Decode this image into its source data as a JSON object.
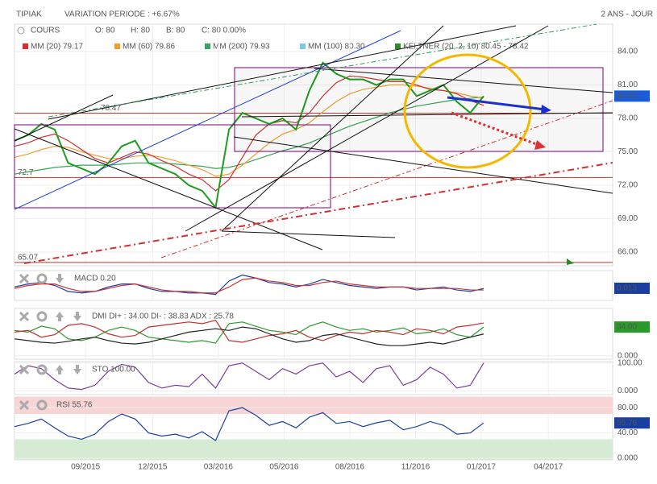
{
  "header": {
    "title": "TIPIAK",
    "variation": "VARIATION PERIODE : +6.67%",
    "period": "2 ANS - JOUR",
    "quote": [
      "COURS",
      "O: 80",
      "H: 80",
      "B: 80",
      "C: 80 0.00%"
    ],
    "extra_legend": [
      {
        "text": "MM (100) 80.30",
        "color": "#7ec8e3"
      },
      {
        "text": "KELTNER (20, 2, 10) 80.45 - 78.42",
        "color": "#2e8b2e"
      }
    ]
  },
  "chart_data": [
    {
      "type": "line",
      "ylim": [
        64.77,
        86.46
      ],
      "xlim": [
        0,
        44.6
      ],
      "yticks": [
        {
          "value": 84,
          "label": "84.00"
        },
        {
          "value": 81,
          "label": "81.00"
        },
        {
          "value": 78,
          "label": "78.00"
        },
        {
          "value": 75,
          "label": "75.00"
        },
        {
          "value": 72,
          "label": "72.00"
        },
        {
          "value": 69,
          "label": "69.00"
        },
        {
          "value": 66,
          "label": "66.00"
        }
      ],
      "xticks": [
        {
          "value": 5.3,
          "label": "09/2015"
        },
        {
          "value": 10.3,
          "label": "12/2015"
        },
        {
          "value": 15.2,
          "label": "03/2016"
        },
        {
          "value": 20.1,
          "label": "05/2016"
        },
        {
          "value": 25.0,
          "label": "08/2016"
        },
        {
          "value": 29.9,
          "label": "11/2016"
        },
        {
          "value": 34.8,
          "label": "01/2017"
        },
        {
          "value": 39.8,
          "label": "04/2017"
        }
      ],
      "last_label": {
        "value": 80,
        "label": "80.00",
        "color": "#1a5bd6"
      },
      "levels": [
        {
          "value": 78.47,
          "label": "78.47"
        },
        {
          "value": 72.7,
          "label": "72.7"
        },
        {
          "value": 65.07,
          "label": "65.07"
        }
      ],
      "level_color": "#c0392b",
      "series": [
        {
          "name": "MM (200) 79.93",
          "color": "#3aa35a",
          "values": [
            73.0,
            73.2,
            73.4,
            73.6,
            73.7,
            73.8,
            73.8,
            73.8,
            73.9,
            74.0,
            74.0,
            74.0,
            73.9,
            73.8,
            73.7,
            73.5,
            73.6,
            73.9,
            74.3,
            74.7,
            75.1,
            75.4,
            75.8,
            76.3,
            76.8,
            77.3,
            77.7,
            78.1,
            78.5,
            78.8,
            79.1,
            79.3,
            79.5,
            79.7,
            79.8,
            79.93
          ]
        },
        {
          "name": "MM (60) 79.86",
          "color": "#f0a030",
          "values": [
            74.5,
            74.8,
            75.2,
            75.5,
            75.4,
            75.0,
            74.7,
            74.4,
            74.4,
            74.6,
            74.7,
            74.5,
            74.2,
            73.8,
            73.4,
            72.8,
            73.0,
            73.8,
            74.8,
            75.8,
            76.6,
            77.0,
            77.6,
            78.6,
            79.5,
            80.2,
            80.6,
            80.8,
            81.0,
            81.0,
            80.9,
            80.7,
            80.5,
            80.3,
            80.0,
            79.86
          ]
        },
        {
          "name": "MM (20) 79.17",
          "color": "#d03030",
          "values": [
            75.5,
            75.8,
            76.3,
            76.6,
            76.0,
            75.2,
            74.4,
            74.0,
            74.5,
            75.0,
            74.8,
            74.2,
            73.7,
            73.0,
            72.5,
            71.5,
            72.5,
            74.5,
            76.5,
            77.5,
            77.8,
            77.6,
            78.5,
            80.0,
            81.2,
            81.8,
            81.7,
            81.5,
            81.3,
            81.3,
            81.0,
            80.6,
            80.5,
            80.2,
            79.6,
            79.17
          ]
        },
        {
          "name": "COURS",
          "color": "#1e9e1e",
          "values": [
            76.0,
            76.5,
            77.5,
            77.0,
            74.0,
            73.5,
            73.0,
            74.0,
            75.5,
            76.0,
            74.0,
            73.5,
            73.0,
            72.0,
            71.5,
            70.0,
            77.0,
            78.5,
            78.0,
            77.5,
            78.0,
            77.0,
            80.5,
            83.0,
            82.0,
            81.5,
            81.5,
            81.0,
            81.5,
            81.5,
            80.0,
            80.5,
            81.0,
            79.5,
            78.5,
            80.0
          ]
        }
      ]
    },
    {
      "type": "line",
      "title": "MACD 0.20",
      "ylim": [
        -0.8,
        1.2
      ],
      "xlim": [
        0,
        44.6
      ],
      "yticks": [],
      "last_label": {
        "value": 0.013,
        "label": "0.013",
        "color": "#1a3fa0"
      },
      "series": [
        {
          "color": "#1a3fa0",
          "values": [
            0.1,
            0.3,
            0.4,
            0.2,
            -0.2,
            -0.3,
            -0.2,
            0.1,
            0.3,
            0.3,
            0.0,
            -0.2,
            -0.2,
            -0.3,
            -0.3,
            -0.4,
            0.5,
            0.9,
            0.7,
            0.4,
            0.3,
            0.1,
            0.3,
            0.6,
            0.4,
            0.2,
            0.1,
            0.0,
            0.1,
            0.1,
            -0.1,
            0.0,
            0.1,
            -0.1,
            -0.2,
            0.0
          ]
        },
        {
          "color": "#d03030",
          "values": [
            0.0,
            0.2,
            0.3,
            0.3,
            0.0,
            -0.2,
            -0.2,
            0.0,
            0.2,
            0.3,
            0.1,
            -0.1,
            -0.2,
            -0.2,
            -0.3,
            -0.3,
            0.1,
            0.6,
            0.7,
            0.5,
            0.4,
            0.2,
            0.2,
            0.4,
            0.5,
            0.3,
            0.2,
            0.1,
            0.1,
            0.1,
            0.0,
            0.0,
            0.0,
            0.0,
            -0.1,
            -0.1
          ]
        }
      ]
    },
    {
      "type": "line",
      "title": "DMI DI+ : 34.00 DI- : 38.83 ADX : 25.78",
      "ylim": [
        -4,
        56
      ],
      "xlim": [
        0,
        44.6
      ],
      "yticks": [
        {
          "value": 0,
          "label": "0.000"
        }
      ],
      "last_label": {
        "value": 34,
        "label": "34.00",
        "color": "#2a9a2a"
      },
      "series": [
        {
          "color": "#2a9a2a",
          "values": [
            30,
            28,
            35,
            32,
            20,
            18,
            22,
            30,
            34,
            30,
            22,
            20,
            18,
            16,
            18,
            15,
            38,
            40,
            35,
            30,
            28,
            25,
            35,
            40,
            34,
            30,
            32,
            28,
            30,
            33,
            26,
            28,
            32,
            25,
            22,
            34
          ]
        },
        {
          "color": "#c03030",
          "values": [
            28,
            30,
            22,
            25,
            36,
            38,
            34,
            26,
            22,
            24,
            34,
            36,
            38,
            40,
            38,
            42,
            18,
            16,
            20,
            24,
            26,
            30,
            22,
            18,
            24,
            28,
            26,
            30,
            28,
            25,
            32,
            30,
            26,
            34,
            36,
            38.83
          ]
        },
        {
          "color": "#222222",
          "values": [
            20,
            18,
            16,
            15,
            17,
            20,
            22,
            18,
            15,
            14,
            16,
            20,
            24,
            28,
            30,
            32,
            30,
            34,
            32,
            26,
            20,
            16,
            18,
            24,
            26,
            22,
            18,
            14,
            12,
            12,
            14,
            16,
            14,
            18,
            22,
            25.78
          ]
        }
      ]
    },
    {
      "type": "line",
      "title": "STO 100.00",
      "ylim": [
        -13.5,
        105
      ],
      "xlim": [
        0,
        44.6
      ],
      "yticks": [
        {
          "value": 100,
          "label": "100.00"
        },
        {
          "value": 0,
          "label": "0.000"
        }
      ],
      "series": [
        {
          "color": "#7a3fa0",
          "values": [
            60,
            90,
            80,
            40,
            10,
            5,
            20,
            70,
            95,
            85,
            30,
            10,
            20,
            15,
            60,
            10,
            90,
            100,
            70,
            40,
            80,
            60,
            90,
            100,
            50,
            70,
            30,
            80,
            90,
            20,
            40,
            85,
            60,
            10,
            20,
            100
          ]
        }
      ]
    },
    {
      "type": "line",
      "title": "RSI 55.76",
      "ylim": [
        -2.6,
        96.8
      ],
      "xlim": [
        0,
        44.6
      ],
      "yticks": [
        {
          "value": 80,
          "label": "80.00"
        },
        {
          "value": 40,
          "label": "40.00"
        },
        {
          "value": 0,
          "label": "0.000"
        }
      ],
      "last_label": {
        "value": 55.76,
        "label": "55.76",
        "color": "#1a3fa0"
      },
      "overbought": 70,
      "overbought_color": "#f8d4d4",
      "oversold": 30,
      "oversold_color": "#d6ebd3",
      "series": [
        {
          "color": "#1a3fa0",
          "values": [
            50,
            55,
            62,
            48,
            35,
            30,
            38,
            58,
            70,
            62,
            40,
            35,
            38,
            32,
            42,
            28,
            75,
            80,
            68,
            52,
            58,
            48,
            65,
            72,
            55,
            58,
            50,
            56,
            60,
            45,
            50,
            58,
            52,
            38,
            40,
            55.76
          ]
        }
      ]
    }
  ]
}
